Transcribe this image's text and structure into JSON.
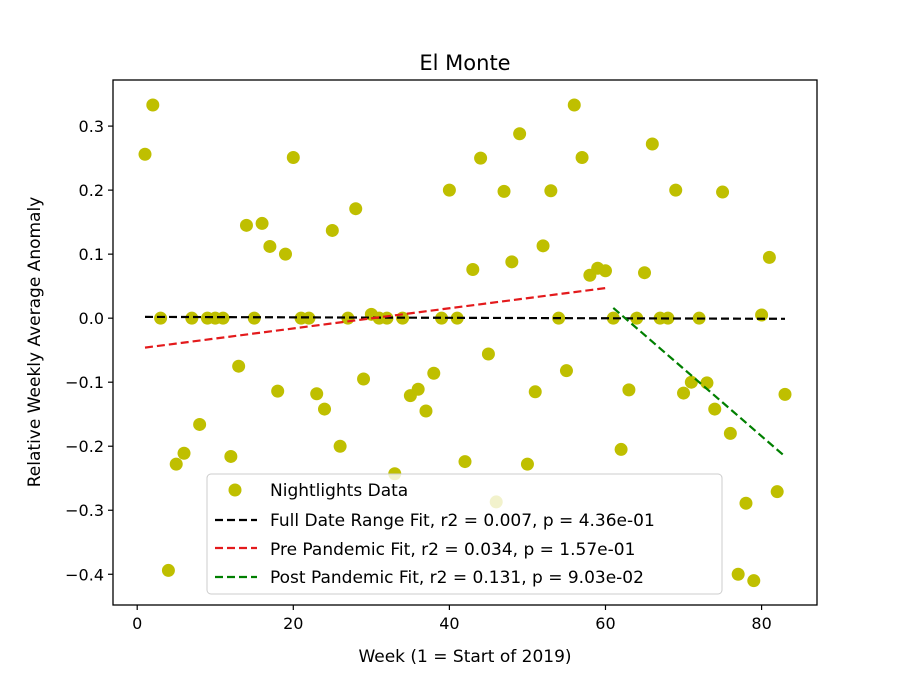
{
  "chart_data": {
    "type": "scatter",
    "title": "El Monte",
    "xlabel": "Week (1 = Start of 2019)",
    "ylabel": "Relative Weekly Average Anomaly",
    "xlim": [
      -3.1,
      87.1
    ],
    "ylim": [
      -0.448,
      0.372
    ],
    "xticks": [
      0,
      20,
      40,
      60,
      80
    ],
    "yticks": [
      -0.4,
      -0.3,
      -0.2,
      -0.1,
      0.0,
      0.1,
      0.2,
      0.3
    ],
    "xtick_labels": [
      "0",
      "20",
      "40",
      "60",
      "80"
    ],
    "ytick_labels": [
      "−0.4",
      "−0.3",
      "−0.2",
      "−0.1",
      "0.0",
      "0.1",
      "0.2",
      "0.3"
    ],
    "series": [
      {
        "name": "Nightlights Data",
        "kind": "scatter",
        "color": "#bfbf00",
        "points": [
          [
            1,
            0.256
          ],
          [
            2,
            0.333
          ],
          [
            3,
            0.0
          ],
          [
            4,
            -0.394
          ],
          [
            5,
            -0.228
          ],
          [
            6,
            -0.211
          ],
          [
            7,
            0.0
          ],
          [
            8,
            -0.166
          ],
          [
            9,
            0.0
          ],
          [
            10,
            0.0
          ],
          [
            11,
            0.0
          ],
          [
            12,
            -0.216
          ],
          [
            13,
            -0.075
          ],
          [
            14,
            0.145
          ],
          [
            15,
            0.0
          ],
          [
            16,
            0.148
          ],
          [
            17,
            0.112
          ],
          [
            18,
            -0.114
          ],
          [
            19,
            0.1
          ],
          [
            20,
            0.251
          ],
          [
            21,
            0.0
          ],
          [
            22,
            0.0
          ],
          [
            23,
            -0.118
          ],
          [
            24,
            -0.142
          ],
          [
            25,
            0.137
          ],
          [
            26,
            -0.2
          ],
          [
            27,
            0.0
          ],
          [
            28,
            0.171
          ],
          [
            29,
            -0.095
          ],
          [
            30,
            0.006
          ],
          [
            31,
            0.0
          ],
          [
            32,
            0.0
          ],
          [
            33,
            -0.243
          ],
          [
            34,
            0.0
          ],
          [
            35,
            -0.121
          ],
          [
            36,
            -0.111
          ],
          [
            37,
            -0.145
          ],
          [
            38,
            -0.086
          ],
          [
            39,
            0.0
          ],
          [
            40,
            0.2
          ],
          [
            41,
            0.0
          ],
          [
            42,
            -0.224
          ],
          [
            43,
            0.076
          ],
          [
            44,
            0.25
          ],
          [
            45,
            -0.056
          ],
          [
            46,
            -0.287
          ],
          [
            47,
            0.198
          ],
          [
            48,
            0.088
          ],
          [
            49,
            0.288
          ],
          [
            50,
            -0.228
          ],
          [
            51,
            -0.115
          ],
          [
            52,
            0.113
          ],
          [
            53,
            0.199
          ],
          [
            54,
            0.0
          ],
          [
            55,
            -0.082
          ],
          [
            56,
            0.333
          ],
          [
            57,
            0.251
          ],
          [
            58,
            0.067
          ],
          [
            59,
            0.078
          ],
          [
            60,
            0.074
          ],
          [
            61,
            0.0
          ],
          [
            62,
            -0.205
          ],
          [
            63,
            -0.112
          ],
          [
            64,
            0.0
          ],
          [
            65,
            0.071
          ],
          [
            66,
            0.272
          ],
          [
            67,
            0.0
          ],
          [
            68,
            0.0
          ],
          [
            69,
            0.2
          ],
          [
            70,
            -0.117
          ],
          [
            71,
            -0.1
          ],
          [
            72,
            0.0
          ],
          [
            73,
            -0.101
          ],
          [
            74,
            -0.142
          ],
          [
            75,
            0.197
          ],
          [
            76,
            -0.18
          ],
          [
            77,
            -0.4
          ],
          [
            78,
            -0.289
          ],
          [
            79,
            -0.41
          ],
          [
            80,
            0.005
          ],
          [
            81,
            0.095
          ],
          [
            82,
            -0.271
          ],
          [
            83,
            -0.119
          ]
        ]
      },
      {
        "name": "Full Date Range Fit, r2 = 0.007, p = 4.36e-01",
        "kind": "line",
        "dash": true,
        "color": "#000000",
        "x": [
          1,
          83
        ],
        "y": [
          0.002,
          -0.001
        ]
      },
      {
        "name": "Pre Pandemic Fit, r2 = 0.034, p = 1.57e-01",
        "kind": "line",
        "dash": true,
        "color": "#e31a1c",
        "x": [
          1,
          60
        ],
        "y": [
          -0.046,
          0.047
        ]
      },
      {
        "name": "Post Pandemic Fit, r2 = 0.131, p = 9.03e-02",
        "kind": "line",
        "dash": true,
        "color": "#007f00",
        "x": [
          61,
          83
        ],
        "y": [
          0.016,
          -0.216
        ]
      }
    ],
    "legend": {
      "position": "lower-center",
      "entries": [
        "Nightlights Data",
        "Full Date Range Fit, r2 = 0.007, p = 4.36e-01",
        "Pre Pandemic Fit, r2 = 0.034, p = 1.57e-01",
        "Post Pandemic Fit, r2 = 0.131, p = 9.03e-02"
      ]
    }
  }
}
